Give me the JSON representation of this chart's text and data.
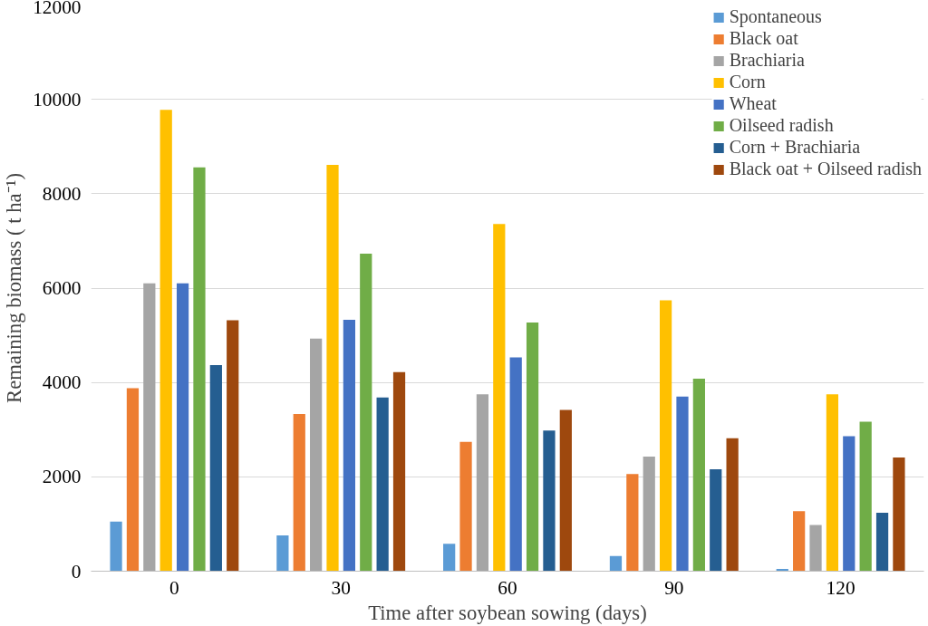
{
  "chart_data": {
    "type": "bar",
    "xlabel": "Time after soybean sowing (days)",
    "ylabel": "Remaining biomass ( t ha⁻¹)",
    "categories": [
      "0",
      "30",
      "60",
      "90",
      "120"
    ],
    "ylim": [
      0,
      12000
    ],
    "yticks": [
      0,
      2000,
      4000,
      6000,
      8000,
      10000,
      12000
    ],
    "grid": "y",
    "legend": "top right",
    "series": [
      {
        "name": "Spontaneous",
        "color": "#5b9bd5",
        "values": [
          1050,
          760,
          580,
          320,
          50
        ]
      },
      {
        "name": "Black oat",
        "color": "#ed7d31",
        "values": [
          3880,
          3330,
          2740,
          2060,
          1270
        ]
      },
      {
        "name": "Brachiaria",
        "color": "#a5a5a5",
        "values": [
          6100,
          4930,
          3750,
          2430,
          980
        ]
      },
      {
        "name": "Corn",
        "color": "#ffc000",
        "values": [
          9780,
          8610,
          7360,
          5740,
          3750
        ]
      },
      {
        "name": "Wheat",
        "color": "#4472c4",
        "values": [
          6100,
          5330,
          4530,
          3700,
          2860
        ]
      },
      {
        "name": "Oilseed radish",
        "color": "#70ad47",
        "values": [
          8560,
          6730,
          5270,
          4080,
          3170
        ]
      },
      {
        "name": "Corn + Brachiaria",
        "color": "#255e91",
        "values": [
          4370,
          3680,
          2980,
          2160,
          1240
        ]
      },
      {
        "name": "Black oat + Oilseed radish",
        "color": "#9e480e",
        "values": [
          5320,
          4220,
          3420,
          2820,
          2410
        ]
      }
    ]
  }
}
